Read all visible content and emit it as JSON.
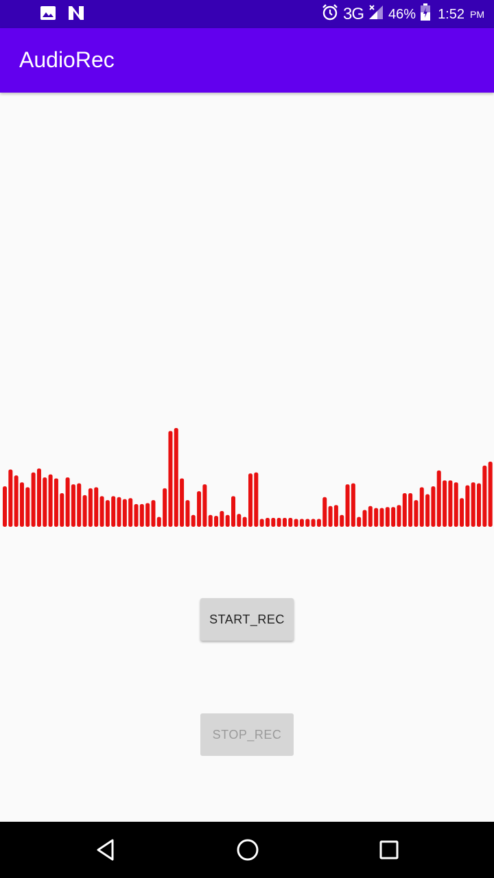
{
  "status_bar": {
    "icons_left": [
      "image-icon",
      "n-notification-icon"
    ],
    "icons_right": [
      "alarm-icon",
      "signal-icon",
      "battery-icon"
    ],
    "network": "3G",
    "battery": "46%",
    "time": "1:52",
    "ampm": "PM"
  },
  "app_bar": {
    "title": "AudioRec",
    "color": "#6200ee",
    "status_color": "#3700b3"
  },
  "visualizer": {
    "color": "#e81010",
    "levels": [
      0.41,
      0.58,
      0.52,
      0.45,
      0.4,
      0.55,
      0.59,
      0.5,
      0.53,
      0.49,
      0.34,
      0.5,
      0.43,
      0.44,
      0.32,
      0.39,
      0.4,
      0.31,
      0.27,
      0.31,
      0.3,
      0.28,
      0.29,
      0.23,
      0.23,
      0.24,
      0.27,
      0.1,
      0.39,
      0.97,
      1.0,
      0.49,
      0.27,
      0.12,
      0.36,
      0.43,
      0.12,
      0.11,
      0.16,
      0.12,
      0.31,
      0.13,
      0.1,
      0.54,
      0.55,
      0.08,
      0.09,
      0.09,
      0.09,
      0.09,
      0.09,
      0.08,
      0.08,
      0.08,
      0.08,
      0.08,
      0.3,
      0.21,
      0.22,
      0.12,
      0.43,
      0.44,
      0.1,
      0.17,
      0.21,
      0.19,
      0.19,
      0.2,
      0.2,
      0.22,
      0.34,
      0.34,
      0.27,
      0.4,
      0.33,
      0.41,
      0.57,
      0.47,
      0.47,
      0.45,
      0.29,
      0.42,
      0.45,
      0.44,
      0.62,
      0.66
    ]
  },
  "buttons": {
    "start_label": "START_REC",
    "stop_label": "STOP_REC"
  },
  "nav_bar": {
    "icons": [
      "back-icon",
      "home-icon",
      "recents-icon"
    ]
  }
}
